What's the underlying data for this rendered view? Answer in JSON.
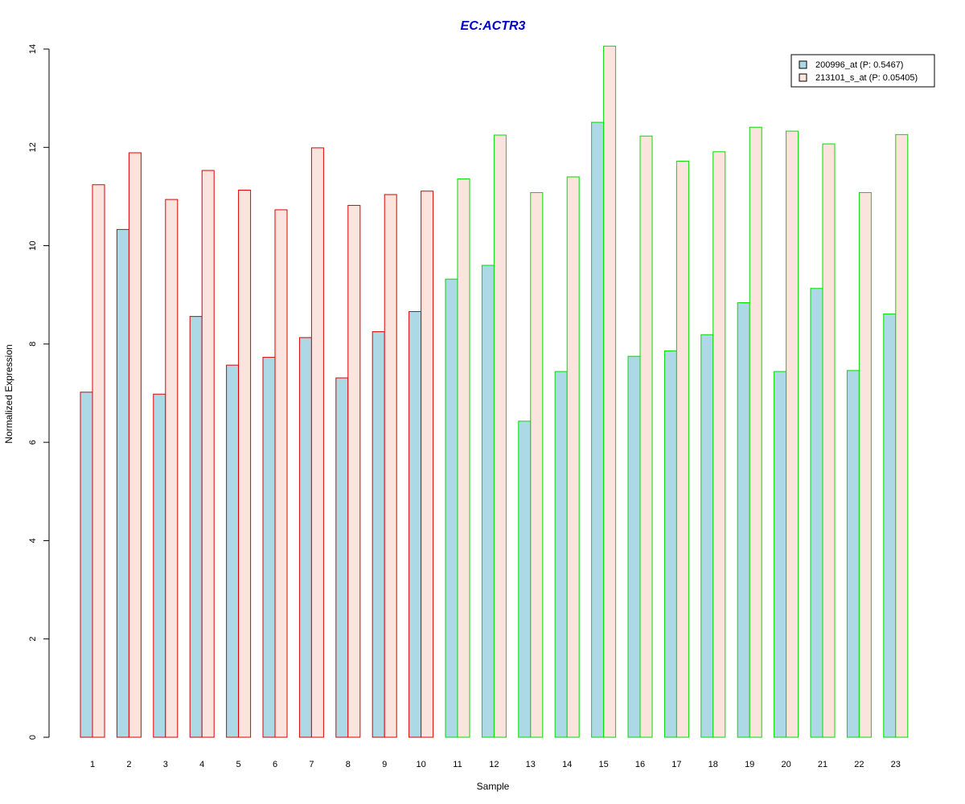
{
  "chart_data": {
    "type": "bar",
    "title": "EC:ACTR3",
    "xlabel": "Sample",
    "ylabel": "Normalized Expression",
    "ylim": [
      0,
      14
    ],
    "yticks": [
      0,
      2,
      4,
      6,
      8,
      10,
      12,
      14
    ],
    "grid": false,
    "legend_position": "top-right",
    "categories": [
      "1",
      "2",
      "3",
      "4",
      "5",
      "6",
      "7",
      "8",
      "9",
      "10",
      "11",
      "12",
      "13",
      "14",
      "15",
      "16",
      "17",
      "18",
      "19",
      "20",
      "21",
      "22",
      "23"
    ],
    "group_colors": [
      "#dd0000",
      "#dd0000",
      "#dd0000",
      "#dd0000",
      "#dd0000",
      "#dd0000",
      "#dd0000",
      "#dd0000",
      "#dd0000",
      "#dd0000",
      "#00dd00",
      "#00dd00",
      "#00dd00",
      "#00dd00",
      "#00dd00",
      "#00dd00",
      "#00dd00",
      "#00dd00",
      "#00dd00",
      "#00dd00",
      "#00dd00",
      "#00dd00",
      "#00dd00"
    ],
    "series": [
      {
        "name": "200996_at (P: 0.5467)",
        "fill": "#add8e6",
        "values": [
          7.02,
          10.33,
          6.98,
          8.56,
          7.57,
          7.73,
          8.13,
          7.31,
          8.25,
          8.66,
          9.32,
          9.6,
          6.43,
          7.44,
          12.51,
          7.75,
          7.86,
          8.19,
          8.84,
          7.44,
          9.13,
          7.46,
          8.61
        ]
      },
      {
        "name": "213101_s_at (P: 0.05405)",
        "fill": "#fbe4dd",
        "values": [
          11.24,
          11.89,
          10.94,
          11.53,
          11.13,
          10.73,
          11.99,
          10.82,
          11.04,
          11.11,
          11.36,
          12.25,
          11.08,
          11.4,
          14.06,
          12.23,
          11.72,
          11.91,
          12.41,
          12.33,
          12.07,
          11.08,
          12.26
        ]
      }
    ]
  },
  "colors": {
    "title": "#0000cc",
    "axis": "#000000"
  }
}
